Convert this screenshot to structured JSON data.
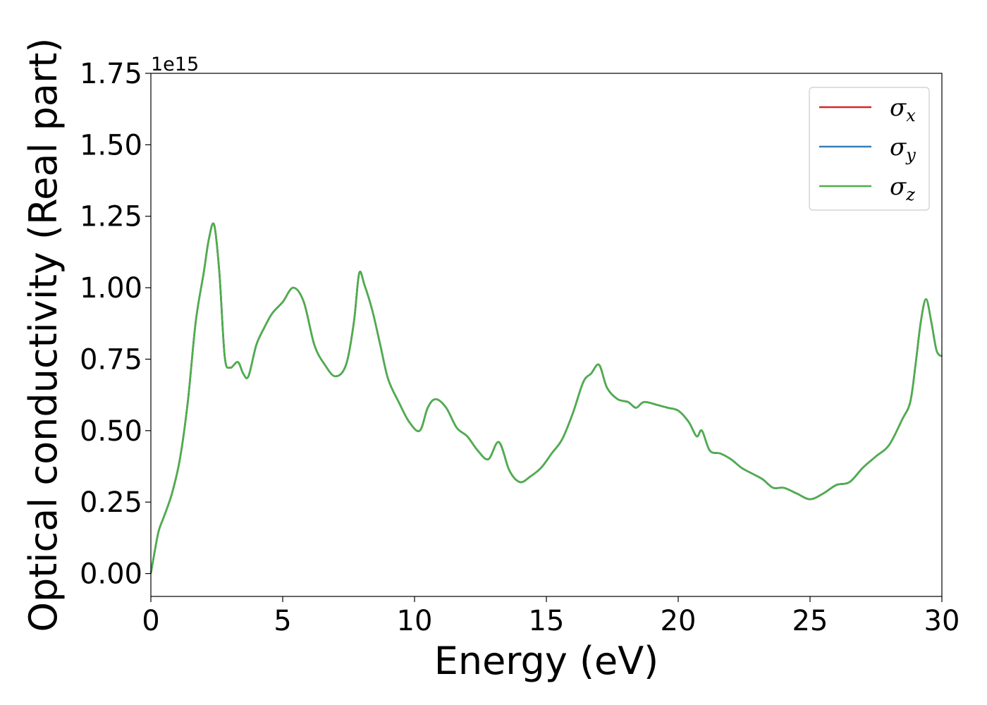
{
  "chart_data": {
    "type": "line",
    "title": "",
    "xlabel": "Energy (eV)",
    "ylabel": "Optical conductivity (Real part)",
    "y_offset_label": "1e15",
    "xlim": [
      0,
      30
    ],
    "ylim": [
      -0.08,
      1.75
    ],
    "x_ticks": [
      0,
      5,
      10,
      15,
      20,
      25,
      30
    ],
    "x_tick_labels": [
      "0",
      "5",
      "10",
      "15",
      "20",
      "25",
      "30"
    ],
    "y_ticks": [
      0,
      0.25,
      0.5,
      0.75,
      1.0,
      1.25,
      1.5,
      1.75
    ],
    "y_tick_labels": [
      "0.00",
      "0.25",
      "0.50",
      "0.75",
      "1.00",
      "1.25",
      "1.50",
      "1.75"
    ],
    "grid": false,
    "legend_position": "top-right",
    "x": [
      0,
      0.15,
      0.3,
      0.5,
      0.8,
      1.1,
      1.4,
      1.7,
      2.0,
      2.2,
      2.4,
      2.6,
      2.8,
      3.0,
      3.3,
      3.5,
      3.7,
      4.0,
      4.3,
      4.6,
      5.0,
      5.4,
      5.8,
      6.2,
      6.6,
      7.0,
      7.4,
      7.7,
      7.9,
      8.1,
      8.4,
      8.7,
      9.0,
      9.4,
      9.8,
      10.2,
      10.5,
      10.8,
      11.2,
      11.6,
      12.0,
      12.4,
      12.8,
      13.2,
      13.6,
      14.0,
      14.4,
      14.8,
      15.2,
      15.6,
      16.0,
      16.4,
      16.7,
      17.0,
      17.3,
      17.7,
      18.1,
      18.4,
      18.7,
      19.2,
      19.6,
      20.0,
      20.4,
      20.7,
      20.9,
      21.2,
      21.6,
      22.0,
      22.4,
      22.8,
      23.2,
      23.6,
      24.0,
      24.5,
      25.0,
      25.5,
      26.0,
      26.5,
      27.0,
      27.5,
      28.0,
      28.5,
      28.8,
      29.0,
      29.2,
      29.4,
      29.6,
      29.8,
      30.0
    ],
    "series": [
      {
        "name": "σx",
        "color": "#d62728",
        "y": [
          0.0,
          0.08,
          0.15,
          0.2,
          0.28,
          0.4,
          0.6,
          0.88,
          1.05,
          1.17,
          1.22,
          1.05,
          0.76,
          0.72,
          0.74,
          0.7,
          0.69,
          0.8,
          0.86,
          0.91,
          0.95,
          1.0,
          0.95,
          0.8,
          0.73,
          0.69,
          0.73,
          0.88,
          1.05,
          1.01,
          0.92,
          0.8,
          0.68,
          0.6,
          0.53,
          0.5,
          0.58,
          0.61,
          0.58,
          0.51,
          0.48,
          0.43,
          0.4,
          0.46,
          0.36,
          0.32,
          0.34,
          0.37,
          0.42,
          0.47,
          0.56,
          0.67,
          0.7,
          0.73,
          0.65,
          0.61,
          0.6,
          0.58,
          0.6,
          0.59,
          0.58,
          0.57,
          0.53,
          0.48,
          0.5,
          0.43,
          0.42,
          0.4,
          0.37,
          0.35,
          0.33,
          0.3,
          0.3,
          0.28,
          0.26,
          0.28,
          0.31,
          0.32,
          0.37,
          0.41,
          0.45,
          0.54,
          0.6,
          0.73,
          0.88,
          0.96,
          0.88,
          0.78,
          0.76
        ]
      },
      {
        "name": "σy",
        "color": "#377eb8",
        "y": [
          0.0,
          0.08,
          0.15,
          0.2,
          0.28,
          0.4,
          0.6,
          0.88,
          1.05,
          1.17,
          1.22,
          1.05,
          0.76,
          0.72,
          0.74,
          0.7,
          0.69,
          0.8,
          0.86,
          0.91,
          0.95,
          1.0,
          0.95,
          0.8,
          0.73,
          0.69,
          0.73,
          0.88,
          1.05,
          1.01,
          0.92,
          0.8,
          0.68,
          0.6,
          0.53,
          0.5,
          0.58,
          0.61,
          0.58,
          0.51,
          0.48,
          0.43,
          0.4,
          0.46,
          0.36,
          0.32,
          0.34,
          0.37,
          0.42,
          0.47,
          0.56,
          0.67,
          0.7,
          0.73,
          0.65,
          0.61,
          0.6,
          0.58,
          0.6,
          0.59,
          0.58,
          0.57,
          0.53,
          0.48,
          0.5,
          0.43,
          0.42,
          0.4,
          0.37,
          0.35,
          0.33,
          0.3,
          0.3,
          0.28,
          0.26,
          0.28,
          0.31,
          0.32,
          0.37,
          0.41,
          0.45,
          0.54,
          0.6,
          0.73,
          0.88,
          0.96,
          0.88,
          0.78,
          0.76
        ]
      },
      {
        "name": "σz",
        "color": "#4daf4a",
        "y": [
          0.0,
          0.08,
          0.15,
          0.2,
          0.28,
          0.4,
          0.6,
          0.88,
          1.05,
          1.17,
          1.22,
          1.05,
          0.76,
          0.72,
          0.74,
          0.7,
          0.69,
          0.8,
          0.86,
          0.91,
          0.95,
          1.0,
          0.95,
          0.8,
          0.73,
          0.69,
          0.73,
          0.88,
          1.05,
          1.01,
          0.92,
          0.8,
          0.68,
          0.6,
          0.53,
          0.5,
          0.58,
          0.61,
          0.58,
          0.51,
          0.48,
          0.43,
          0.4,
          0.46,
          0.36,
          0.32,
          0.34,
          0.37,
          0.42,
          0.47,
          0.56,
          0.67,
          0.7,
          0.73,
          0.65,
          0.61,
          0.6,
          0.58,
          0.6,
          0.59,
          0.58,
          0.57,
          0.53,
          0.48,
          0.5,
          0.43,
          0.42,
          0.4,
          0.37,
          0.35,
          0.33,
          0.3,
          0.3,
          0.28,
          0.26,
          0.28,
          0.31,
          0.32,
          0.37,
          0.41,
          0.45,
          0.54,
          0.6,
          0.73,
          0.88,
          0.96,
          0.88,
          0.78,
          0.76
        ]
      }
    ],
    "legend": [
      {
        "symbol": "σ",
        "sub": "x"
      },
      {
        "symbol": "σ",
        "sub": "y"
      },
      {
        "symbol": "σ",
        "sub": "z"
      }
    ]
  }
}
